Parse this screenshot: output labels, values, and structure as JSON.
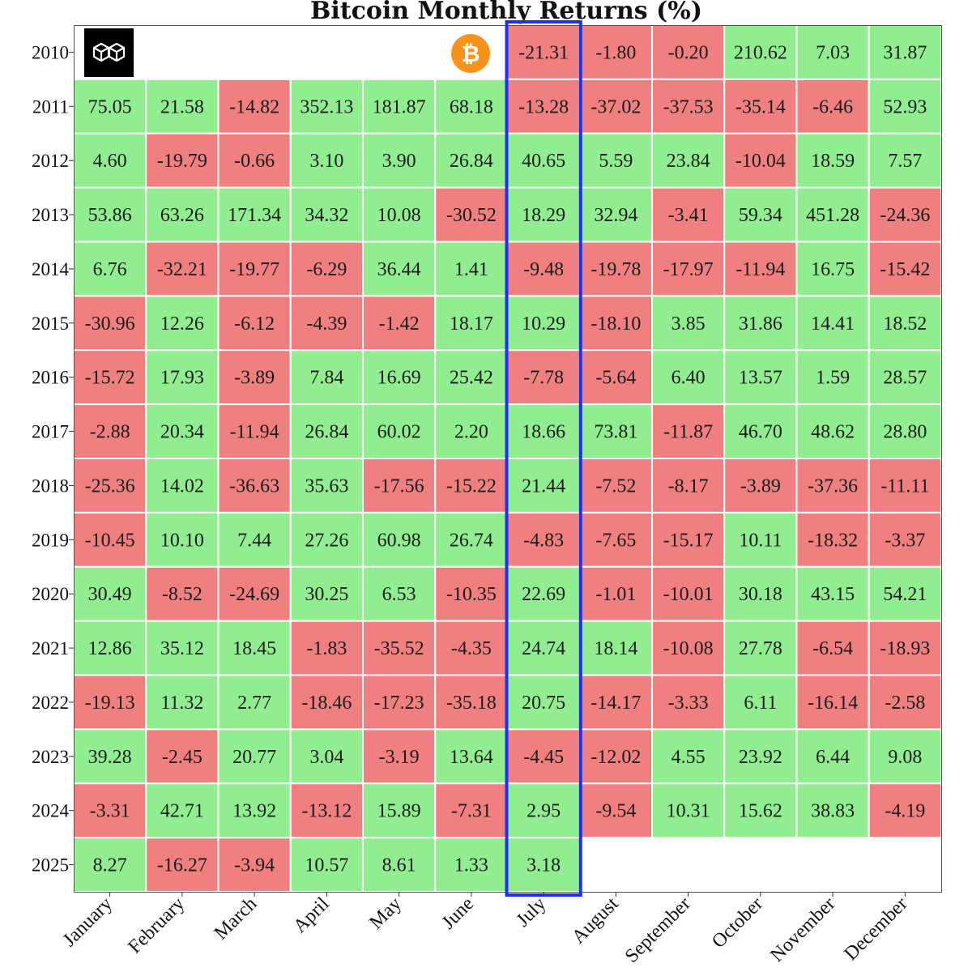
{
  "colors": {
    "positive": "#90ee90",
    "negative": "#f08080",
    "highlight": "#1f2ff0",
    "grid": "#ffffff",
    "frame": "#555555"
  },
  "logos": {
    "left_logo_icon": "interlocked-cubes-logo-icon",
    "right_logo_icon": "bitcoin-coin-icon",
    "bitcoin_symbol": "₿"
  },
  "chart_data": {
    "type": "heatmap",
    "title": "Bitcoin Monthly Returns (%)",
    "xlabel": "",
    "ylabel": "",
    "grid": true,
    "legend": "none",
    "highlight_column": "July",
    "columns": [
      "January",
      "February",
      "March",
      "April",
      "May",
      "June",
      "July",
      "August",
      "September",
      "October",
      "November",
      "December"
    ],
    "rows": [
      "2010",
      "2011",
      "2012",
      "2013",
      "2014",
      "2015",
      "2016",
      "2017",
      "2018",
      "2019",
      "2020",
      "2021",
      "2022",
      "2023",
      "2024",
      "2025"
    ],
    "values": [
      [
        null,
        null,
        null,
        null,
        null,
        null,
        "-21.31",
        "-1.80",
        "-0.20",
        "210.62",
        "7.03",
        "31.87"
      ],
      [
        "75.05",
        "21.58",
        "-14.82",
        "352.13",
        "181.87",
        "68.18",
        "-13.28",
        "-37.02",
        "-37.53",
        "-35.14",
        "-6.46",
        "52.93"
      ],
      [
        "4.60",
        "-19.79",
        "-0.66",
        "3.10",
        "3.90",
        "26.84",
        "40.65",
        "5.59",
        "23.84",
        "-10.04",
        "18.59",
        "7.57"
      ],
      [
        "53.86",
        "63.26",
        "171.34",
        "34.32",
        "10.08",
        "-30.52",
        "18.29",
        "32.94",
        "-3.41",
        "59.34",
        "451.28",
        "-24.36"
      ],
      [
        "6.76",
        "-32.21",
        "-19.77",
        "-6.29",
        "36.44",
        "1.41",
        "-9.48",
        "-19.78",
        "-17.97",
        "-11.94",
        "16.75",
        "-15.42"
      ],
      [
        "-30.96",
        "12.26",
        "-6.12",
        "-4.39",
        "-1.42",
        "18.17",
        "10.29",
        "-18.10",
        "3.85",
        "31.86",
        "14.41",
        "18.52"
      ],
      [
        "-15.72",
        "17.93",
        "-3.89",
        "7.84",
        "16.69",
        "25.42",
        "-7.78",
        "-5.64",
        "6.40",
        "13.57",
        "1.59",
        "28.57"
      ],
      [
        "-2.88",
        "20.34",
        "-11.94",
        "26.84",
        "60.02",
        "2.20",
        "18.66",
        "73.81",
        "-11.87",
        "46.70",
        "48.62",
        "28.80"
      ],
      [
        "-25.36",
        "14.02",
        "-36.63",
        "35.63",
        "-17.56",
        "-15.22",
        "21.44",
        "-7.52",
        "-8.17",
        "-3.89",
        "-37.36",
        "-11.11"
      ],
      [
        "-10.45",
        "10.10",
        "7.44",
        "27.26",
        "60.98",
        "26.74",
        "-4.83",
        "-7.65",
        "-15.17",
        "10.11",
        "-18.32",
        "-3.37"
      ],
      [
        "30.49",
        "-8.52",
        "-24.69",
        "30.25",
        "6.53",
        "-10.35",
        "22.69",
        "-1.01",
        "-10.01",
        "30.18",
        "43.15",
        "54.21"
      ],
      [
        "12.86",
        "35.12",
        "18.45",
        "-1.83",
        "-35.52",
        "-4.35",
        "24.74",
        "18.14",
        "-10.08",
        "27.78",
        "-6.54",
        "-18.93"
      ],
      [
        "-19.13",
        "11.32",
        "2.77",
        "-18.46",
        "-17.23",
        "-35.18",
        "20.75",
        "-14.17",
        "-3.33",
        "6.11",
        "-16.14",
        "-2.58"
      ],
      [
        "39.28",
        "-2.45",
        "20.77",
        "3.04",
        "-3.19",
        "13.64",
        "-4.45",
        "-12.02",
        "4.55",
        "23.92",
        "6.44",
        "9.08"
      ],
      [
        "-3.31",
        "42.71",
        "13.92",
        "-13.12",
        "15.89",
        "-7.31",
        "2.95",
        "-9.54",
        "10.31",
        "15.62",
        "38.83",
        "-4.19"
      ],
      [
        "8.27",
        "-16.27",
        "-3.94",
        "10.57",
        "8.61",
        "1.33",
        "3.18",
        null,
        null,
        null,
        null,
        null
      ]
    ]
  }
}
